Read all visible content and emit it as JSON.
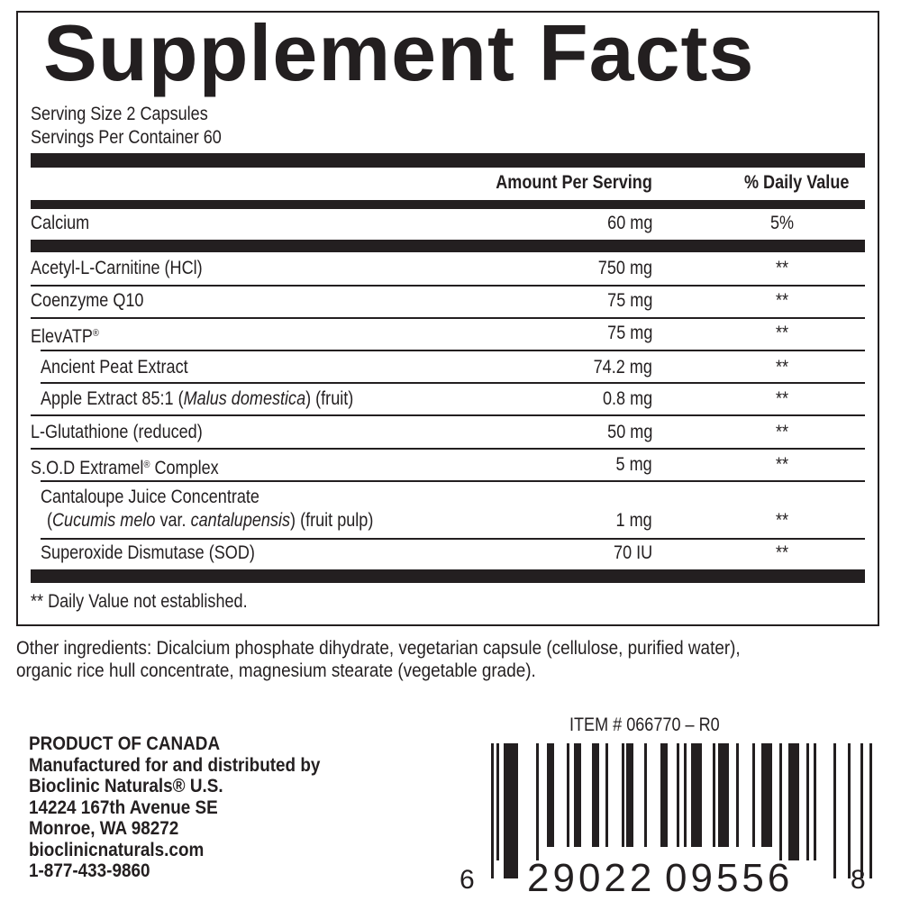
{
  "title": "Supplement Facts",
  "serving_size": "Serving Size 2 Capsules",
  "servings_per_container": "Servings Per Container 60",
  "headers": {
    "amount": "Amount Per Serving",
    "dv": "% Daily Value"
  },
  "rows": [
    {
      "name": "Calcium",
      "amount": "60 mg",
      "dv": "5%"
    },
    {
      "name": "Acetyl-L-Carnitine (HCl)",
      "amount": "750 mg",
      "dv": "**"
    },
    {
      "name": "Coenzyme Q10",
      "amount": "75 mg",
      "dv": "**"
    },
    {
      "name": "ElevATP",
      "sup": "®",
      "amount": "75 mg",
      "dv": "**"
    },
    {
      "name": "Ancient Peat Extract",
      "amount": "74.2 mg",
      "dv": "**"
    },
    {
      "name": "Apple Extract 85:1 (",
      "italic": "Malus domestica",
      "after": ") (fruit)",
      "amount": "0.8 mg",
      "dv": "**"
    },
    {
      "name": "L-Glutathione (reduced)",
      "amount": "50 mg",
      "dv": "**"
    },
    {
      "name": "S.O.D Extramel",
      "sup": "®",
      "after": " Complex",
      "amount": "5 mg",
      "dv": "**"
    },
    {
      "name": "Cantaloupe Juice Concentrate",
      "line2a": "(",
      "line2i1": "Cucumis melo",
      "line2b": " var. ",
      "line2i2": "cantalupensis",
      "line2c": ") (fruit pulp)",
      "amount": "1 mg",
      "dv": "**"
    },
    {
      "name": "Superoxide Dismutase (SOD)",
      "amount": "70 IU",
      "dv": "**"
    }
  ],
  "footnote": "** Daily Value not established.",
  "other_ingredients": [
    "Other ingredients: Dicalcium phosphate dihydrate, vegetarian capsule (cellulose, purified water),",
    "organic rice hull concentrate, magnesium stearate (vegetable grade)."
  ],
  "manufacturer": [
    "PRODUCT OF CANADA",
    "Manufactured for and distributed by",
    "Bioclinic Naturals® U.S.",
    "14224 167th Avenue SE",
    "Monroe, WA 98272",
    "bioclinicnaturals.com",
    "1-877-433-9860"
  ],
  "item_number": "ITEM # 066770 – R0",
  "barcode": {
    "left": "6",
    "group1": "29022",
    "group2": "09556",
    "right": "8"
  }
}
